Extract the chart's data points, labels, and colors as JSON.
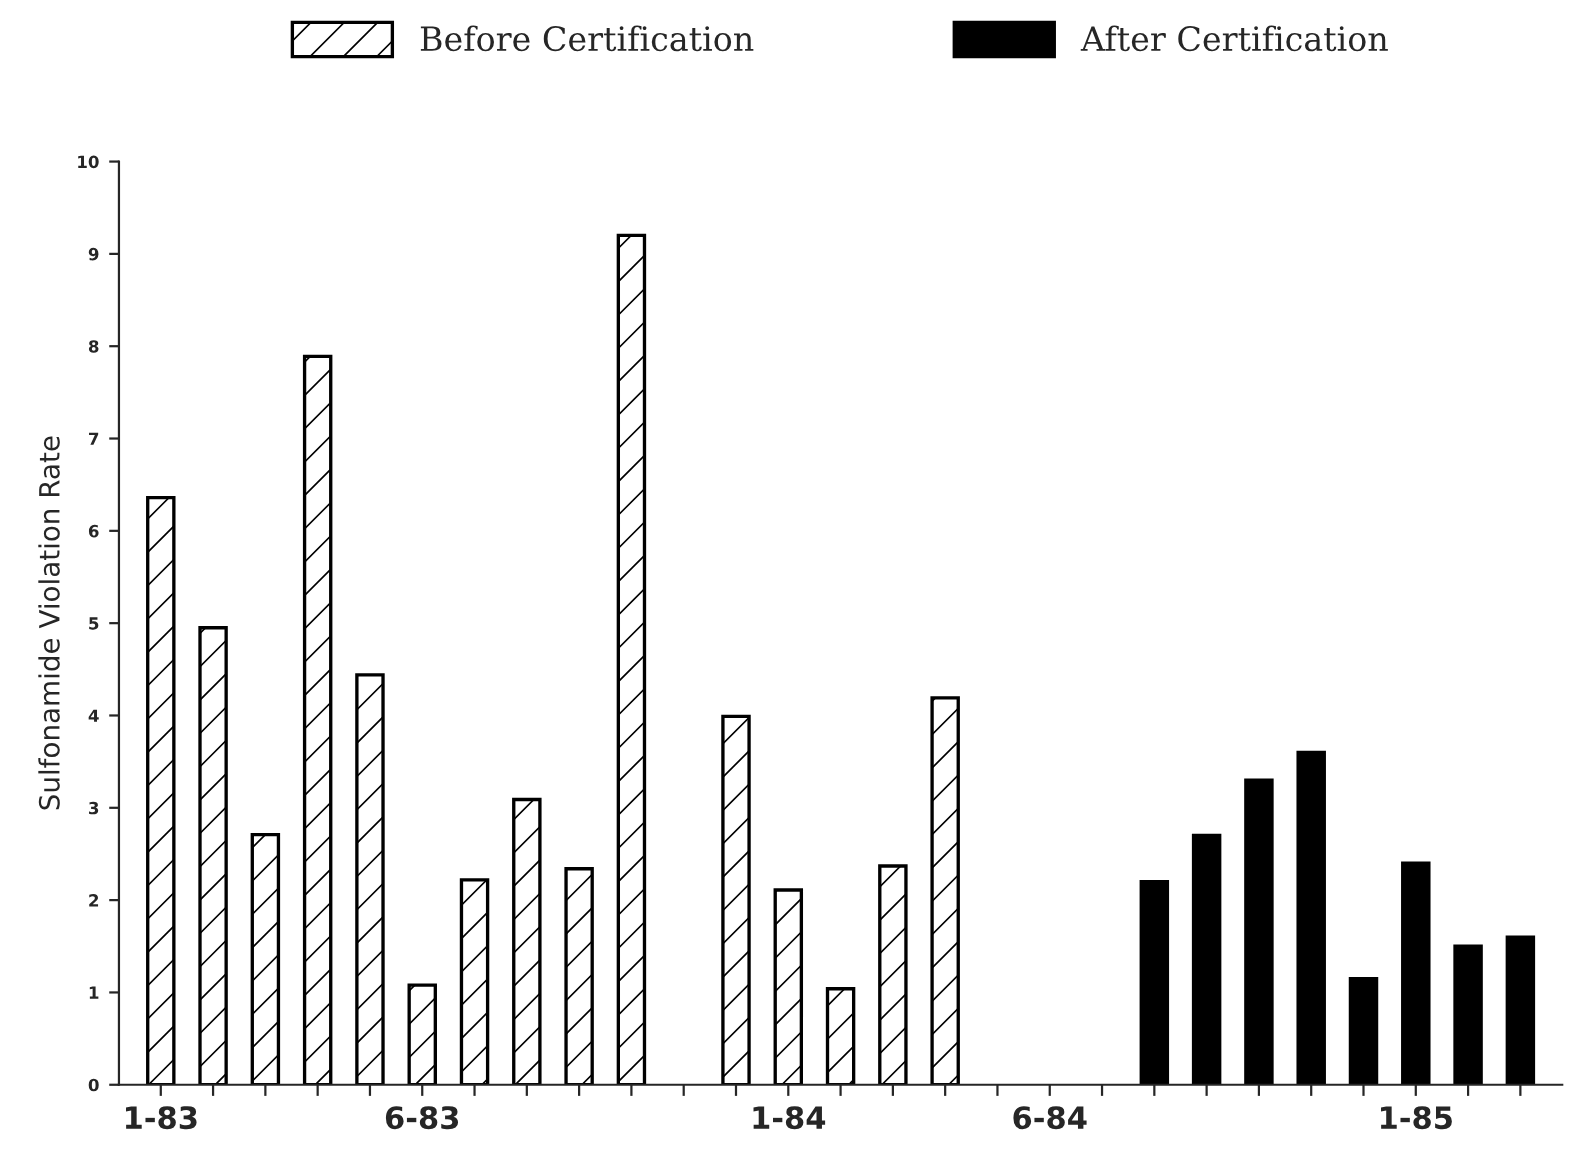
{
  "chart_data": {
    "type": "bar",
    "ylabel": "Sulfonamide Violation Rate",
    "categories": [
      "1-83",
      null,
      null,
      null,
      null,
      "6-83",
      null,
      null,
      null,
      null,
      null,
      null,
      "1-84",
      null,
      null,
      null,
      null,
      "6-84",
      null,
      null,
      null,
      null,
      null,
      null,
      "1-85",
      null,
      null
    ],
    "series": [
      {
        "name": "Before Certification",
        "color": "#ffffff",
        "values": [
          6.36,
          4.95,
          2.71,
          7.89,
          4.44,
          1.08,
          2.22,
          3.09,
          2.34,
          9.2,
          null,
          3.99,
          2.11,
          1.04,
          2.37,
          4.19,
          null,
          null,
          null,
          null,
          null,
          null,
          null,
          null,
          null,
          null,
          null
        ]
      },
      {
        "name": "After Certification",
        "color": "#000000",
        "values": [
          null,
          null,
          null,
          null,
          null,
          null,
          null,
          null,
          null,
          null,
          null,
          null,
          null,
          null,
          null,
          null,
          null,
          null,
          null,
          2.2,
          2.7,
          3.3,
          3.6,
          1.15,
          2.4,
          1.5,
          1.6
        ]
      }
    ],
    "ylim": [
      0,
      10
    ],
    "yticks": [
      0,
      1,
      2,
      3,
      4,
      5,
      6,
      7,
      8,
      9,
      10
    ],
    "grid": false,
    "legend": "top"
  }
}
